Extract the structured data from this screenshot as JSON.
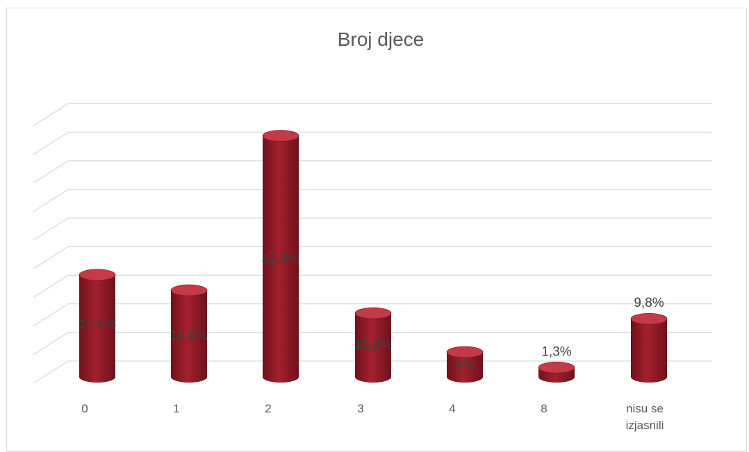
{
  "chart_data": {
    "type": "bar",
    "title": "Broj djece",
    "categories": [
      "0",
      "1",
      "2",
      "3",
      "4",
      "8",
      "nisu se izjasnili"
    ],
    "values": [
      17.5,
      14.8,
      41.8,
      10.8,
      4,
      1.3,
      9.8
    ],
    "data_labels": [
      "17,5%",
      "14,8%",
      "41,8%",
      "10,8%",
      "4%",
      "1,3%",
      "9,8%"
    ],
    "ylim": [
      0,
      45
    ],
    "grid": true,
    "legend": "none",
    "bar_shape": "cylinder",
    "colors": {
      "bar": "#a3202e",
      "bar_dark": "#6e121c",
      "bar_light": "#c43a48",
      "gridline": "#d9d9d9",
      "text": "#595959",
      "label": "#404040"
    }
  }
}
